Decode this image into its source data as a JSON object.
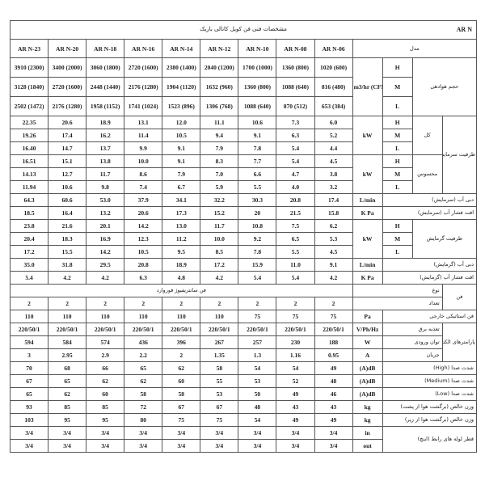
{
  "header": {
    "title": "مشخصات فنی فن کویل کانالی باریک",
    "series": "AR N",
    "model_label": "مدل",
    "models": [
      "AR N-23",
      "AR N-20",
      "AR N-18",
      "AR N-16",
      "AR N-14",
      "AR N-12",
      "AR N-10",
      "AR N-08",
      "AR N-06"
    ]
  },
  "levels": {
    "H": "H",
    "M": "M",
    "L": "L"
  },
  "labels": {
    "airflow": "حجم هوادهی",
    "cooling_capacity": "ظرفیت سرمایش",
    "total": "کل",
    "sensible": "محسوس",
    "cool_flow": "دبی آب (سرمایش)",
    "cool_pressure": "افت فشار آب (سرمایش)",
    "heating_capacity": "ظرفیت گرمایش",
    "heat_flow": "دبی آب (گرمایش)",
    "heat_pressure": "افت فشار آب (گرمایش)",
    "fan": "فن",
    "fan_type": "نوع",
    "fan_count": "تعداد",
    "fan_type_value": "فن سانتریفیوژ فوروارد",
    "static_pressure": "فن استاتیکی خارجی",
    "electrical": "پارامترهای الکتریکی",
    "power_supply": "تغذیه برق",
    "input_power": "توان ورودی",
    "current": "جریان",
    "noise_high": "شدت صدا (High)",
    "noise_medium": "شدت صدا (Medium)",
    "noise_low": "شدت صدا (Low)",
    "weight_back": "وزن خالص (برگشت هوا از پشت)",
    "weight_bottom": "وزن خالص (برگشت هوا از زیر)",
    "pipe": "قطر لوله های رابط (اینچ)"
  },
  "units": {
    "airflow": "m3/hr (CFM)",
    "kw": "kW",
    "lmin": "L/min",
    "kpa": "K Pa",
    "pa": "Pa",
    "vphz": "V/Ph/Hz",
    "w": "W",
    "a": "A",
    "dba": "(A)dB",
    "kg": "kg",
    "in": "in",
    "out": "out"
  },
  "values": {
    "airflow_h": [
      "3910 (2300)",
      "3400 (2000)",
      "3060 (1800)",
      "2720 (1600)",
      "2380 (1400)",
      "2040 (1200)",
      "1700 (1000)",
      "1360 (800)",
      "1020 (600)"
    ],
    "airflow_m": [
      "3128 (1840)",
      "2720 (1600)",
      "2448 (1440)",
      "2176 (1280)",
      "1904 (1120)",
      "1632 (960)",
      "1360 (800)",
      "1088 (640)",
      "816 (480)"
    ],
    "airflow_l": [
      "2502 (1472)",
      "2176 (1280)",
      "1958 (1152)",
      "1741 (1024)",
      "1523 (896)",
      "1306 (768)",
      "1088 (640)",
      "870 (512)",
      "653 (384)"
    ],
    "cool_total_h": [
      "22.35",
      "20.6",
      "18.9",
      "13.1",
      "12.0",
      "11.1",
      "10.6",
      "7.3",
      "6.0"
    ],
    "cool_total_m": [
      "19.26",
      "17.4",
      "16.2",
      "11.4",
      "10.5",
      "9.4",
      "9.1",
      "6.3",
      "5.2"
    ],
    "cool_total_l": [
      "16.40",
      "14.7",
      "13.7",
      "9.9",
      "9.1",
      "7.9",
      "7.8",
      "5.4",
      "4.4"
    ],
    "cool_sens_h": [
      "16.51",
      "15.1",
      "13.8",
      "10.0",
      "9.1",
      "8.3",
      "7.7",
      "5.4",
      "4.5"
    ],
    "cool_sens_m": [
      "14.13",
      "12.7",
      "11.7",
      "8.6",
      "7.9",
      "7.0",
      "6.6",
      "4.7",
      "3.8"
    ],
    "cool_sens_l": [
      "11.94",
      "10.6",
      "9.8",
      "7.4",
      "6.7",
      "5.9",
      "5.5",
      "4.0",
      "3.2"
    ],
    "cool_flow": [
      "64.3",
      "60.6",
      "53.0",
      "37.9",
      "34.1",
      "32.2",
      "30.3",
      "20.8",
      "17.4"
    ],
    "cool_pressure": [
      "18.5",
      "16.4",
      "13.2",
      "20.6",
      "17.3",
      "15.2",
      "20",
      "21.5",
      "15.8"
    ],
    "heat_h": [
      "23.8",
      "21.6",
      "20.1",
      "14.2",
      "13.0",
      "11.7",
      "10.8",
      "7.5",
      "6.2"
    ],
    "heat_m": [
      "20.4",
      "18.3",
      "16.9",
      "12.3",
      "11.2",
      "10.0",
      "9.2",
      "6.5",
      "5.3"
    ],
    "heat_l": [
      "17.2",
      "15.5",
      "14.2",
      "10.5",
      "9.5",
      "8.5",
      "7.8",
      "5.5",
      "4.5"
    ],
    "heat_flow": [
      "35.0",
      "31.8",
      "29.5",
      "20.8",
      "18.9",
      "17.2",
      "15.9",
      "11.0",
      "9.1"
    ],
    "heat_pressure": [
      "5.4",
      "4.2",
      "4.2",
      "6.3",
      "4.8",
      "4.2",
      "5.4",
      "5.4",
      "4.2"
    ],
    "fan_count": [
      "2",
      "2",
      "2",
      "2",
      "2",
      "2",
      "2",
      "2",
      "2"
    ],
    "static_pressure": [
      "110",
      "110",
      "110",
      "110",
      "110",
      "110",
      "75",
      "75",
      "75"
    ],
    "power_supply": [
      "220/50/1",
      "220/50/1",
      "220/50/1",
      "220/50/1",
      "220/50/1",
      "220/50/1",
      "220/50/1",
      "220/50/1",
      "220/50/1"
    ],
    "input_power": [
      "594",
      "584",
      "574",
      "436",
      "396",
      "267",
      "257",
      "230",
      "188"
    ],
    "current": [
      "3",
      "2.95",
      "2.9",
      "2.2",
      "2",
      "1.35",
      "1.3",
      "1.16",
      "0.95"
    ],
    "noise_high": [
      "70",
      "68",
      "66",
      "65",
      "62",
      "58",
      "54",
      "54",
      "49"
    ],
    "noise_medium": [
      "67",
      "65",
      "62",
      "62",
      "60",
      "55",
      "53",
      "52",
      "48"
    ],
    "noise_low": [
      "65",
      "62",
      "60",
      "58",
      "58",
      "53",
      "50",
      "49",
      "46"
    ],
    "weight_back": [
      "93",
      "85",
      "85",
      "72",
      "67",
      "67",
      "48",
      "43",
      "43"
    ],
    "weight_bottom": [
      "103",
      "95",
      "95",
      "80",
      "75",
      "75",
      "54",
      "49",
      "49"
    ],
    "pipe_in": [
      "3/4",
      "3/4",
      "3/4",
      "3/4",
      "3/4",
      "3/4",
      "3/4",
      "3/4",
      "3/4"
    ],
    "pipe_out": [
      "3/4",
      "3/4",
      "3/4",
      "3/4",
      "3/4",
      "3/4",
      "3/4",
      "3/4",
      "3/4"
    ]
  }
}
